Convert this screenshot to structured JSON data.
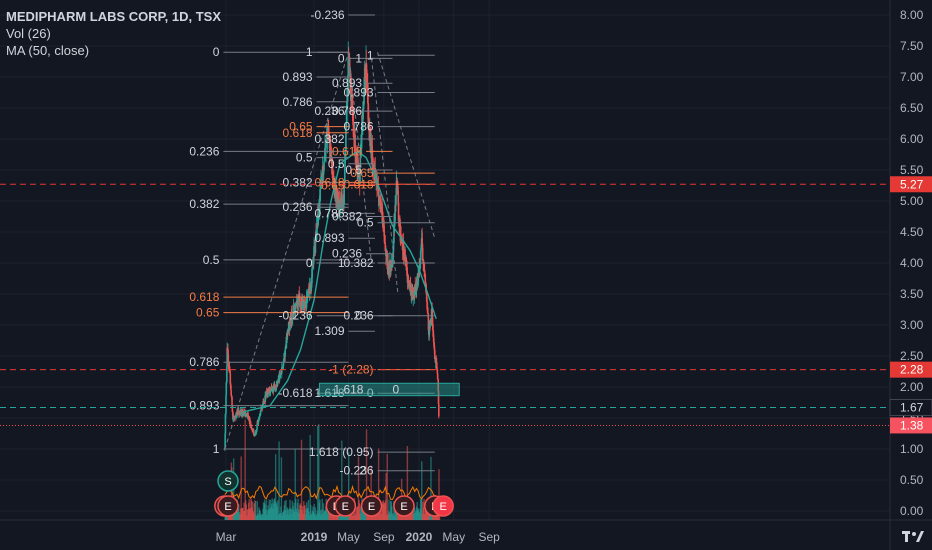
{
  "legend": {
    "title": "MEDIPHARM LABS CORP, 1D, TSX",
    "volume": "Vol (26)",
    "ma": "MA (50, close)"
  },
  "colors": {
    "background": "#131722",
    "grid": "#1e2230",
    "up": "#26a69a",
    "down": "#ef5350",
    "ma": "#26a69a",
    "fib_line": "#787b86",
    "fib_highlight": "#f57c45",
    "dashed_red": "#e53935",
    "dashed_teal": "#26a69a",
    "event_red": "#ef5350",
    "badge_red": "#f23645"
  },
  "chart_data": {
    "type": "candlestick",
    "x_axis": {
      "tick_labels": [
        "Mar",
        "2019",
        "May",
        "Sep",
        "2020",
        "May",
        "Sep"
      ],
      "tick_dates": [
        "2018-03-01",
        "2019-01-01",
        "2019-05-01",
        "2019-09-01",
        "2020-01-01",
        "2020-05-01",
        "2020-09-01"
      ],
      "bold_labels": [
        "2019",
        "2020"
      ]
    },
    "y_axis": {
      "position": "right",
      "range": [
        -0.1,
        8.15
      ],
      "tick_labels": [
        "8.00",
        "7.50",
        "7.00",
        "6.50",
        "6.00",
        "5.50",
        "5.00",
        "4.50",
        "4.00",
        "3.50",
        "3.00",
        "2.50",
        "2.00",
        "1.50",
        "1.00",
        "0.50",
        "0.00"
      ],
      "tick_values": [
        8,
        7.5,
        7,
        6.5,
        6,
        5.5,
        5,
        4.5,
        4,
        3.5,
        3,
        2.5,
        2,
        1.5,
        1,
        0.5,
        0
      ]
    },
    "price_path": [
      [
        "2018-02-25",
        1.0
      ],
      [
        "2018-03-05",
        2.6
      ],
      [
        "2018-03-15",
        2.2
      ],
      [
        "2018-03-25",
        1.5
      ],
      [
        "2018-04-15",
        1.6
      ],
      [
        "2018-05-15",
        1.55
      ],
      [
        "2018-06-10",
        1.2
      ],
      [
        "2018-06-25",
        1.55
      ],
      [
        "2018-07-20",
        1.9
      ],
      [
        "2018-08-20",
        2.0
      ],
      [
        "2018-09-15",
        2.3
      ],
      [
        "2018-10-01",
        2.9
      ],
      [
        "2018-10-20",
        3.2
      ],
      [
        "2018-11-10",
        3.4
      ],
      [
        "2018-12-01",
        3.3
      ],
      [
        "2018-12-20",
        3.6
      ],
      [
        "2019-01-10",
        4.5
      ],
      [
        "2019-02-01",
        5.5
      ],
      [
        "2019-02-20",
        6.2
      ],
      [
        "2019-03-10",
        5.2
      ],
      [
        "2019-03-25",
        5.0
      ],
      [
        "2019-04-15",
        5.0
      ],
      [
        "2019-05-01",
        7.4
      ],
      [
        "2019-05-20",
        6.0
      ],
      [
        "2019-06-10",
        5.4
      ],
      [
        "2019-06-20",
        6.5
      ],
      [
        "2019-07-01",
        7.2
      ],
      [
        "2019-07-15",
        6.0
      ],
      [
        "2019-08-01",
        5.4
      ],
      [
        "2019-08-20",
        5.0
      ],
      [
        "2019-09-01",
        4.5
      ],
      [
        "2019-09-15",
        3.9
      ],
      [
        "2019-10-01",
        4.0
      ],
      [
        "2019-10-15",
        5.4
      ],
      [
        "2019-10-25",
        4.6
      ],
      [
        "2019-11-10",
        4.2
      ],
      [
        "2019-11-25",
        3.7
      ],
      [
        "2019-12-10",
        3.5
      ],
      [
        "2019-12-25",
        3.6
      ],
      [
        "2020-01-10",
        4.3
      ],
      [
        "2020-01-25",
        3.6
      ],
      [
        "2020-02-05",
        2.9
      ],
      [
        "2020-02-15",
        3.2
      ],
      [
        "2020-02-25",
        2.5
      ],
      [
        "2020-03-05",
        2.3
      ],
      [
        "2020-03-12",
        1.4
      ]
    ],
    "moving_average": [
      [
        "2018-05-01",
        1.6
      ],
      [
        "2018-08-01",
        1.7
      ],
      [
        "2018-10-01",
        2.1
      ],
      [
        "2018-11-15",
        2.6
      ],
      [
        "2019-01-01",
        3.4
      ],
      [
        "2019-02-01",
        4.3
      ],
      [
        "2019-03-01",
        5.0
      ],
      [
        "2019-04-01",
        5.6
      ],
      [
        "2019-05-01",
        5.7
      ],
      [
        "2019-06-01",
        5.8
      ],
      [
        "2019-07-01",
        5.7
      ],
      [
        "2019-08-01",
        5.4
      ],
      [
        "2019-09-01",
        5.0
      ],
      [
        "2019-10-01",
        4.6
      ],
      [
        "2019-11-01",
        4.4
      ],
      [
        "2019-12-01",
        4.2
      ],
      [
        "2020-01-01",
        3.9
      ],
      [
        "2020-02-01",
        3.5
      ],
      [
        "2020-03-01",
        3.1
      ]
    ],
    "horizontal_lines": [
      {
        "value": 5.27,
        "label": "5.27",
        "style": "dashed",
        "color": "#e53935",
        "label_bg": "#e53935"
      },
      {
        "value": 2.28,
        "label": "2.28",
        "style": "dashed",
        "color": "#e53935",
        "label_bg": "#e53935"
      },
      {
        "value": 1.67,
        "label": "1.67",
        "style": "dashed",
        "color": "#26a69a",
        "label_bg": "#131722",
        "label_color": "#d1d4dc"
      },
      {
        "value": 1.38,
        "label": "1.38",
        "style": "dotted",
        "color": "#ef5350",
        "label_bg": "#f7525f"
      }
    ],
    "fib_sets": [
      {
        "x_left": "2018-02-20",
        "x_right": "2019-05-01",
        "levels": [
          {
            "label": "0",
            "value": 7.4
          },
          {
            "label": "0.236",
            "value": 5.8
          },
          {
            "label": "0.382",
            "value": 4.95
          },
          {
            "label": "0.5",
            "value": 4.05
          },
          {
            "label": "0.618",
            "value": 3.45,
            "highlight": true
          },
          {
            "label": "0.65",
            "value": 3.2,
            "highlight": true
          },
          {
            "label": "0.786",
            "value": 2.4
          },
          {
            "label": "0.893",
            "value": 1.7
          },
          {
            "label": "1",
            "value": 1.0
          }
        ]
      },
      {
        "x_left": "2019-01-10",
        "x_right": "2019-05-01",
        "levels": [
          {
            "label": "1",
            "value": 7.4
          },
          {
            "label": "0.893",
            "value": 7.0
          },
          {
            "label": "0.786",
            "value": 6.6
          },
          {
            "label": "0.65",
            "value": 6.2,
            "highlight": true
          },
          {
            "label": "0.618",
            "value": 6.1,
            "highlight": true
          },
          {
            "label": "0.5",
            "value": 5.7
          },
          {
            "label": "0.382",
            "value": 5.3
          },
          {
            "label": "0.236",
            "value": 4.9
          },
          {
            "label": "0",
            "value": 4.0
          },
          {
            "label": "-0.236",
            "value": 3.15
          },
          {
            "label": "-0.618",
            "value": 1.9
          }
        ]
      },
      {
        "x_left": "2019-05-01",
        "x_right": "2019-08-01",
        "levels": [
          {
            "label": "-0.236",
            "value": 8.0
          },
          {
            "label": "0",
            "value": 7.3
          },
          {
            "label": "0.236",
            "value": 6.45
          },
          {
            "label": "0.382",
            "value": 6.0
          },
          {
            "label": "0.5",
            "value": 5.6
          },
          {
            "label": "0.618",
            "value": 5.3,
            "highlight": true
          },
          {
            "label": "0.65",
            "value": 5.25,
            "highlight": true
          },
          {
            "label": "0.786",
            "value": 4.8
          },
          {
            "label": "0.893",
            "value": 4.4
          },
          {
            "label": "1",
            "value": 4.0
          },
          {
            "label": "1.309",
            "value": 2.9
          },
          {
            "label": "1.618",
            "value": 1.9
          }
        ]
      },
      {
        "x_left": "2019-07-01",
        "x_right": "2019-10-01",
        "levels": [
          {
            "label": "1",
            "value": 7.3
          },
          {
            "label": "0.893",
            "value": 6.9
          },
          {
            "label": "0.786",
            "value": 6.45
          },
          {
            "label": "0.618",
            "value": 5.8,
            "highlight": true
          },
          {
            "label": "0.5",
            "value": 5.5
          },
          {
            "label": "0.382",
            "value": 4.75
          },
          {
            "label": "0.236",
            "value": 4.15
          },
          {
            "label": "0",
            "value": 3.15
          }
        ]
      },
      {
        "x_left": "2019-08-10",
        "x_right": "2020-02-25",
        "levels": [
          {
            "label": "1",
            "value": 7.35
          },
          {
            "label": "0.893",
            "value": 6.75
          },
          {
            "label": "0.786",
            "value": 6.2
          },
          {
            "label": "0.65",
            "value": 5.45,
            "highlight": true
          },
          {
            "label": "0.618",
            "value": 5.27,
            "highlight": true
          },
          {
            "label": "0.5",
            "value": 4.65
          },
          {
            "label": "0.382",
            "value": 4.0
          },
          {
            "label": "0.236",
            "value": 3.15
          },
          {
            "label": "0",
            "value": 1.9
          },
          {
            "label": "-0.236",
            "value": 0.65
          },
          {
            "label": "-0.618",
            "value": -1.1
          },
          {
            "label": "-1 (2.28)",
            "value": 2.28,
            "highlight": true
          },
          {
            "label": "1.618 (0.95)",
            "value": 0.95
          }
        ]
      }
    ],
    "fib_level_labels_extra": [
      "2"
    ],
    "teal_box": {
      "x_from": "2019-01-20",
      "x_to": "2020-05-20",
      "y_from": 1.86,
      "y_to": 2.06,
      "label_left": "1.618",
      "label_right": "0"
    },
    "volume_scale_max": 100,
    "events": [
      {
        "date": "2018-02-25",
        "letter": "E"
      },
      {
        "date": "2018-03-08",
        "letter": "E"
      },
      {
        "date": "2019-03-20",
        "letter": "E"
      },
      {
        "date": "2019-04-20",
        "letter": "E"
      },
      {
        "date": "2019-07-20",
        "letter": "E"
      },
      {
        "date": "2019-11-10",
        "letter": "E"
      },
      {
        "date": "2020-02-25",
        "letter": "E"
      },
      {
        "date": "2020-03-25",
        "letter": "E",
        "upcoming": true
      }
    ],
    "split_marker": {
      "date": "2018-03-08",
      "letter": "S"
    }
  },
  "logo_alt": "tv-logo-icon"
}
